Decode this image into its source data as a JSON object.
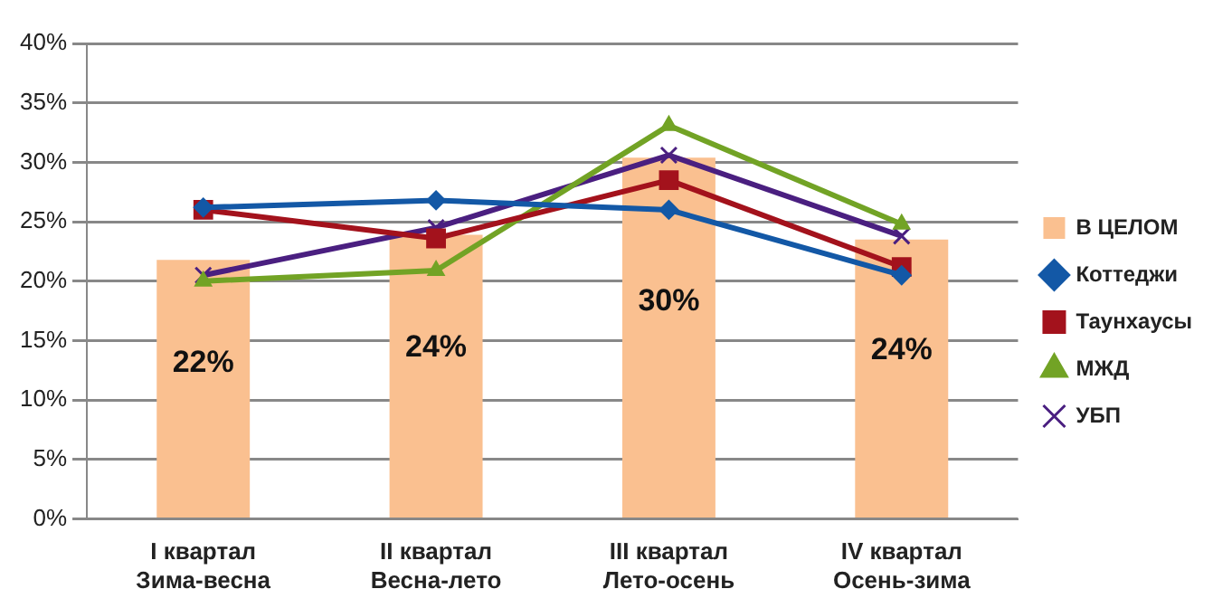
{
  "chart_data": {
    "type": "bar",
    "categories": [
      "I квартал\nЗима-весна",
      "II квартал\nВесна-лето",
      "III квартал\nЛето-осень",
      "IV квартал\nОсень-зима"
    ],
    "series": [
      {
        "name": "В ЦЕЛОМ",
        "color": "#fac090",
        "values": [
          21.8,
          23.9,
          30.4,
          23.5
        ],
        "value_labels": [
          "22%",
          "24%",
          "30%",
          "24%"
        ]
      },
      {
        "name": "Коттеджи",
        "type": "line",
        "color": "#1358a6",
        "marker": "diamond",
        "values": [
          26.2,
          26.8,
          26.0,
          20.5
        ]
      },
      {
        "name": "Таунхаусы",
        "type": "line",
        "color": "#a3121c",
        "marker": "square",
        "values": [
          26.0,
          23.6,
          28.5,
          21.2
        ]
      },
      {
        "name": "МЖД",
        "type": "line",
        "color": "#72a325",
        "marker": "triangle",
        "values": [
          20.0,
          20.9,
          33.1,
          24.8
        ]
      },
      {
        "name": "УБП",
        "type": "line",
        "color": "#4a1f80",
        "marker": "cross",
        "values": [
          20.5,
          24.5,
          30.6,
          23.8
        ]
      }
    ],
    "ylim": [
      0,
      40
    ],
    "yticks": [
      {
        "value": 0,
        "label": "0%"
      },
      {
        "value": 5,
        "label": "5%"
      },
      {
        "value": 10,
        "label": "10%"
      },
      {
        "value": 15,
        "label": "15%"
      },
      {
        "value": 20,
        "label": "20%"
      },
      {
        "value": 25,
        "label": "25%"
      },
      {
        "value": 30,
        "label": "30%"
      },
      {
        "value": 35,
        "label": "35%"
      },
      {
        "value": 40,
        "label": "40%"
      }
    ],
    "grid": "y",
    "legend": "right",
    "line_style": "solid"
  }
}
